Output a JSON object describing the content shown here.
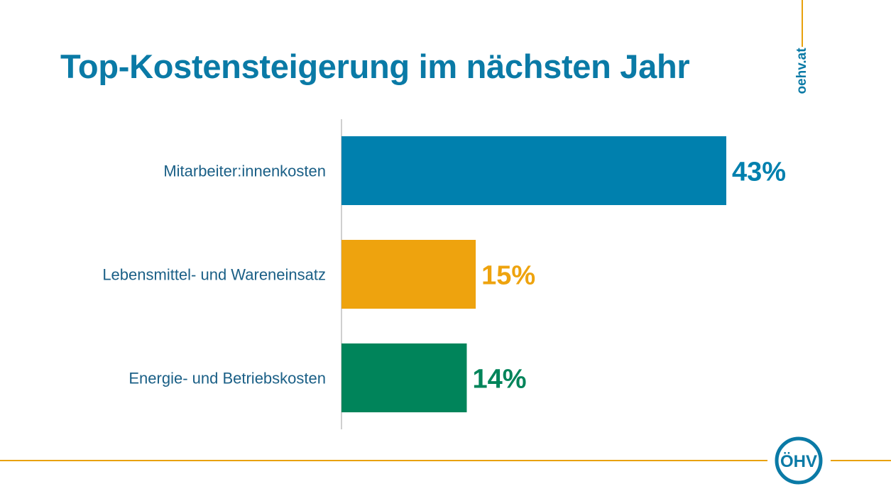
{
  "title": "Top-Kostensteigerung im nächsten Jahr",
  "site": "oehv.at",
  "logo_text": "ÖHV",
  "colors": {
    "title": "#0a7aa6",
    "accent_line": "#e8a10c"
  },
  "chart_data": {
    "type": "bar",
    "orientation": "horizontal",
    "categories": [
      "Mitarbeiter:innenkosten",
      "Lebensmittel- und Wareneinsatz",
      "Energie- und Betriebskosten"
    ],
    "values": [
      43,
      15,
      14
    ],
    "value_labels": [
      "43%",
      "15%",
      "14%"
    ],
    "unit": "%",
    "colors": [
      "#0080ae",
      "#eea30e",
      "#00845a"
    ],
    "xlim": [
      0,
      50
    ],
    "grid": false,
    "legend": "none"
  }
}
